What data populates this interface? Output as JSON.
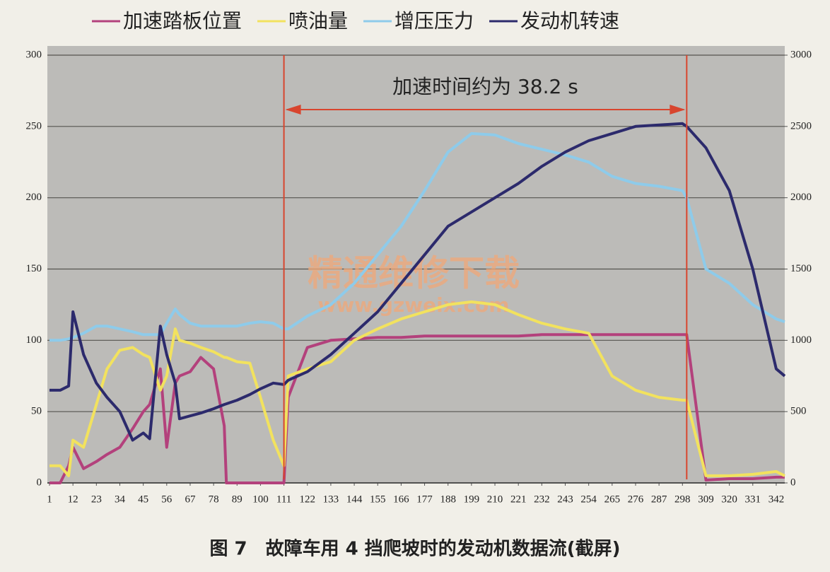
{
  "chart_data": {
    "type": "line",
    "caption": "图 7　故障车用 4 挡爬坡时的发动机数据流(截屏)",
    "annotation": "加速时间约为 38.2 s",
    "vlines": [
      111,
      300
    ],
    "watermark": "精通维修下载",
    "watermark_url": "www.gzweix.com",
    "xlim": [
      0,
      346
    ],
    "xticks": [
      1,
      12,
      23,
      34,
      45,
      56,
      67,
      78,
      89,
      100,
      111,
      122,
      133,
      144,
      155,
      166,
      177,
      188,
      199,
      210,
      221,
      232,
      243,
      254,
      265,
      276,
      287,
      298,
      309,
      320,
      331,
      342
    ],
    "ylim": [
      0,
      300
    ],
    "yticks": [
      0,
      50,
      100,
      150,
      200,
      250,
      300
    ],
    "y2lim": [
      0,
      3000
    ],
    "y2ticks": [
      0,
      500,
      1000,
      1500,
      2000,
      2500,
      3000
    ],
    "grid": true,
    "x": [
      1,
      6,
      10,
      12,
      17,
      23,
      28,
      34,
      40,
      45,
      48,
      53,
      56,
      60,
      62,
      67,
      72,
      78,
      83,
      84,
      89,
      95,
      100,
      106,
      111,
      113,
      122,
      133,
      144,
      155,
      166,
      177,
      188,
      199,
      210,
      221,
      232,
      243,
      254,
      265,
      276,
      287,
      298,
      300,
      309,
      320,
      331,
      342,
      346
    ],
    "series": [
      {
        "name": "加速踏板位置",
        "color": "#b3417c",
        "values": [
          0,
          0,
          12,
          25,
          10,
          15,
          20,
          25,
          38,
          50,
          55,
          80,
          25,
          70,
          75,
          78,
          88,
          80,
          40,
          0,
          0,
          0,
          0,
          0,
          0,
          60,
          95,
          100,
          101,
          102,
          102,
          103,
          103,
          103,
          103,
          103,
          104,
          104,
          104,
          104,
          104,
          104,
          104,
          104,
          2,
          3,
          3,
          4,
          4
        ]
      },
      {
        "name": "喷油量",
        "color": "#f2e25e",
        "values": [
          12,
          12,
          5,
          30,
          25,
          55,
          80,
          93,
          95,
          90,
          88,
          65,
          75,
          108,
          100,
          98,
          95,
          92,
          88,
          88,
          85,
          84,
          60,
          30,
          12,
          75,
          80,
          85,
          100,
          108,
          115,
          120,
          125,
          127,
          125,
          118,
          112,
          108,
          105,
          75,
          65,
          60,
          58,
          58,
          5,
          5,
          6,
          8,
          5
        ]
      },
      {
        "name": "增压压力",
        "color": "#8ecbea",
        "values": [
          100,
          100,
          101,
          102,
          105,
          110,
          110,
          108,
          106,
          104,
          104,
          104,
          112,
          122,
          118,
          112,
          110,
          110,
          110,
          110,
          110,
          112,
          113,
          112,
          108,
          108,
          117,
          125,
          140,
          160,
          180,
          205,
          232,
          245,
          244,
          238,
          234,
          230,
          225,
          215,
          210,
          208,
          205,
          200,
          150,
          140,
          125,
          115,
          113
        ]
      },
      {
        "name": "发动机转速",
        "color": "#2c2a6c",
        "axis": "y2",
        "values": [
          650,
          650,
          680,
          1200,
          900,
          700,
          600,
          500,
          300,
          350,
          310,
          1100,
          900,
          700,
          450,
          470,
          490,
          520,
          550,
          555,
          580,
          620,
          660,
          700,
          690,
          720,
          780,
          900,
          1050,
          1200,
          1400,
          1600,
          1800,
          1900,
          2000,
          2100,
          2220,
          2320,
          2400,
          2450,
          2500,
          2510,
          2520,
          2500,
          2350,
          2050,
          1500,
          800,
          750
        ]
      }
    ]
  }
}
